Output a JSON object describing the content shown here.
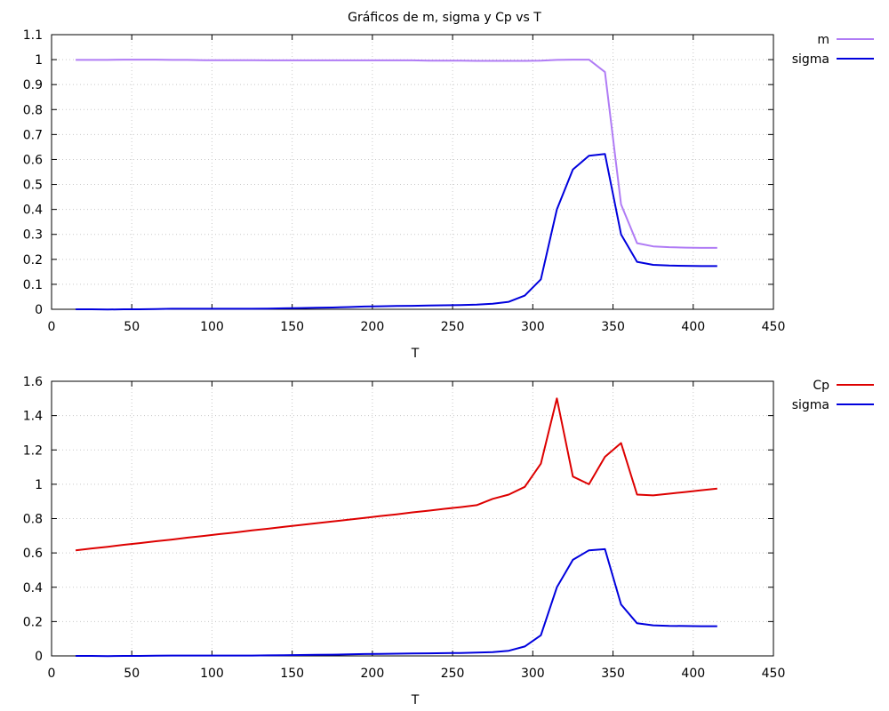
{
  "chart_data": [
    {
      "type": "line",
      "title": "Gráficos de m, sigma y Cp vs T",
      "xlabel": "T",
      "ylabel": "",
      "xlim": [
        0,
        450
      ],
      "ylim": [
        0,
        1.1
      ],
      "xticks": [
        "0",
        "50",
        "100",
        "150",
        "200",
        "250",
        "300",
        "350",
        "400",
        "450"
      ],
      "yticks": [
        "0",
        "0.1",
        "0.2",
        "0.3",
        "0.4",
        "0.5",
        "0.6",
        "0.7",
        "0.8",
        "0.9",
        "1",
        "1.1"
      ],
      "grid": true,
      "legend": "outside-top-right",
      "x": [
        15,
        25,
        35,
        45,
        55,
        65,
        75,
        85,
        95,
        105,
        115,
        125,
        135,
        145,
        155,
        165,
        175,
        185,
        195,
        205,
        215,
        225,
        235,
        245,
        255,
        265,
        275,
        285,
        295,
        305,
        315,
        325,
        335,
        345,
        355,
        365,
        375,
        385,
        395,
        405,
        415
      ],
      "series": [
        {
          "name": "m",
          "color": "#b07cf5",
          "values": [
            0.999,
            0.999,
            0.999,
            1.0,
            1.0,
            1.0,
            0.999,
            0.999,
            0.998,
            0.998,
            0.998,
            0.998,
            0.997,
            0.997,
            0.997,
            0.997,
            0.997,
            0.997,
            0.997,
            0.997,
            0.997,
            0.997,
            0.996,
            0.996,
            0.996,
            0.995,
            0.995,
            0.995,
            0.995,
            0.996,
            0.999,
            1.0,
            1.0,
            0.95,
            0.42,
            0.265,
            0.252,
            0.249,
            0.247,
            0.246,
            0.246
          ]
        },
        {
          "name": "sigma",
          "color": "#0000dd",
          "values": [
            0.0,
            0.0,
            -0.001,
            0.0,
            0.0,
            0.001,
            0.002,
            0.002,
            0.002,
            0.002,
            0.002,
            0.002,
            0.003,
            0.004,
            0.005,
            0.006,
            0.007,
            0.009,
            0.011,
            0.012,
            0.013,
            0.014,
            0.015,
            0.016,
            0.017,
            0.019,
            0.022,
            0.03,
            0.055,
            0.12,
            0.4,
            0.56,
            0.615,
            0.622,
            0.3,
            0.19,
            0.178,
            0.175,
            0.174,
            0.173,
            0.173
          ]
        }
      ]
    },
    {
      "type": "line",
      "title": "",
      "xlabel": "T",
      "ylabel": "",
      "xlim": [
        0,
        450
      ],
      "ylim": [
        0,
        1.6
      ],
      "xticks": [
        "0",
        "50",
        "100",
        "150",
        "200",
        "250",
        "300",
        "350",
        "400",
        "450"
      ],
      "yticks": [
        "0",
        "0.2",
        "0.4",
        "0.6",
        "0.8",
        "1",
        "1.2",
        "1.4",
        "1.6"
      ],
      "grid": true,
      "legend": "outside-top-right",
      "x": [
        15,
        25,
        35,
        45,
        55,
        65,
        75,
        85,
        95,
        105,
        115,
        125,
        135,
        145,
        155,
        165,
        175,
        185,
        195,
        205,
        215,
        225,
        235,
        245,
        255,
        265,
        275,
        285,
        295,
        305,
        315,
        325,
        335,
        345,
        355,
        365,
        375,
        385,
        395,
        405,
        415
      ],
      "series": [
        {
          "name": "Cp",
          "color": "#dd0000",
          "values": [
            0.615,
            0.626,
            0.636,
            0.647,
            0.657,
            0.668,
            0.678,
            0.689,
            0.699,
            0.71,
            0.72,
            0.731,
            0.741,
            0.752,
            0.762,
            0.773,
            0.783,
            0.794,
            0.804,
            0.815,
            0.825,
            0.836,
            0.846,
            0.857,
            0.867,
            0.878,
            0.915,
            0.94,
            0.985,
            1.12,
            1.5,
            1.045,
            1.0,
            1.16,
            1.24,
            0.94,
            0.935,
            0.945,
            0.955,
            0.965,
            0.975
          ]
        },
        {
          "name": "sigma",
          "color": "#0000dd",
          "values": [
            0.0,
            0.0,
            -0.001,
            0.0,
            0.0,
            0.001,
            0.002,
            0.002,
            0.002,
            0.002,
            0.002,
            0.002,
            0.003,
            0.004,
            0.005,
            0.006,
            0.007,
            0.009,
            0.011,
            0.012,
            0.013,
            0.014,
            0.015,
            0.016,
            0.017,
            0.019,
            0.022,
            0.03,
            0.055,
            0.12,
            0.4,
            0.56,
            0.615,
            0.622,
            0.3,
            0.19,
            0.178,
            0.175,
            0.174,
            0.173,
            0.173
          ]
        }
      ]
    }
  ]
}
